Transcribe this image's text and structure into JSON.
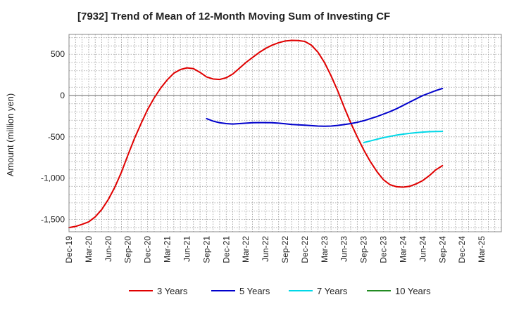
{
  "chart_data": {
    "type": "line",
    "title": "[7932]  Trend of Mean of 12-Month Moving Sum of Investing CF",
    "xlabel": "",
    "ylabel": "Amount (million yen)",
    "ylim": [
      -1650,
      740
    ],
    "yticks": [
      500,
      0,
      -500,
      -1000,
      -1500
    ],
    "ytick_labels": [
      "500",
      "0",
      "-500",
      "-1,000",
      "-1,500"
    ],
    "x_range": [
      0,
      66
    ],
    "xtick_labels": [
      "Dec-19",
      "Mar-20",
      "Jun-20",
      "Sep-20",
      "Dec-20",
      "Mar-21",
      "Jun-21",
      "Sep-21",
      "Dec-21",
      "Mar-22",
      "Jun-22",
      "Sep-22",
      "Dec-22",
      "Mar-23",
      "Jun-23",
      "Sep-23",
      "Dec-23",
      "Mar-24",
      "Jun-24",
      "Sep-24",
      "Dec-24",
      "Mar-25"
    ],
    "legend_position": "bottom",
    "grid": true,
    "series": [
      {
        "name": "3 Years",
        "color": "#e00000",
        "x": [
          0,
          1,
          2,
          3,
          4,
          5,
          6,
          7,
          8,
          9,
          10,
          11,
          12,
          13,
          14,
          15,
          16,
          17,
          18,
          19,
          20,
          21,
          22,
          23,
          24,
          25,
          26,
          27,
          28,
          29,
          30,
          31,
          32,
          33,
          34,
          35,
          36,
          37,
          38,
          39,
          40,
          41,
          42,
          43,
          44,
          45,
          46,
          47,
          48,
          49,
          50,
          51,
          52,
          53,
          54,
          55,
          56,
          57
        ],
        "values": [
          -1600,
          -1585,
          -1560,
          -1530,
          -1470,
          -1380,
          -1260,
          -1110,
          -930,
          -720,
          -520,
          -340,
          -170,
          -30,
          90,
          190,
          270,
          315,
          335,
          325,
          280,
          225,
          200,
          195,
          215,
          260,
          330,
          400,
          460,
          520,
          570,
          610,
          640,
          660,
          668,
          665,
          655,
          610,
          525,
          400,
          240,
          60,
          -140,
          -330,
          -500,
          -660,
          -800,
          -920,
          -1020,
          -1080,
          -1105,
          -1110,
          -1100,
          -1070,
          -1030,
          -970,
          -900,
          -850
        ]
      },
      {
        "name": "5 Years",
        "color": "#0000cc",
        "x": [
          21,
          22,
          23,
          24,
          25,
          26,
          27,
          28,
          29,
          30,
          31,
          32,
          33,
          34,
          35,
          36,
          37,
          38,
          39,
          40,
          41,
          42,
          43,
          44,
          45,
          46,
          47,
          48,
          49,
          50,
          51,
          52,
          53,
          54,
          55,
          56,
          57
        ],
        "values": [
          -280,
          -310,
          -330,
          -340,
          -345,
          -340,
          -335,
          -330,
          -328,
          -328,
          -330,
          -335,
          -342,
          -350,
          -355,
          -360,
          -365,
          -370,
          -372,
          -370,
          -362,
          -352,
          -340,
          -325,
          -305,
          -280,
          -255,
          -225,
          -195,
          -160,
          -120,
          -80,
          -40,
          0,
          30,
          60,
          85
        ]
      },
      {
        "name": "7 Years",
        "color": "#00d8e8",
        "x": [
          45,
          46,
          47,
          48,
          49,
          50,
          51,
          52,
          53,
          54,
          55,
          56,
          57
        ],
        "values": [
          -570,
          -550,
          -530,
          -510,
          -495,
          -480,
          -468,
          -458,
          -450,
          -443,
          -438,
          -436,
          -435
        ]
      },
      {
        "name": "10 Years",
        "color": "#228b22",
        "x": [],
        "values": []
      }
    ]
  }
}
